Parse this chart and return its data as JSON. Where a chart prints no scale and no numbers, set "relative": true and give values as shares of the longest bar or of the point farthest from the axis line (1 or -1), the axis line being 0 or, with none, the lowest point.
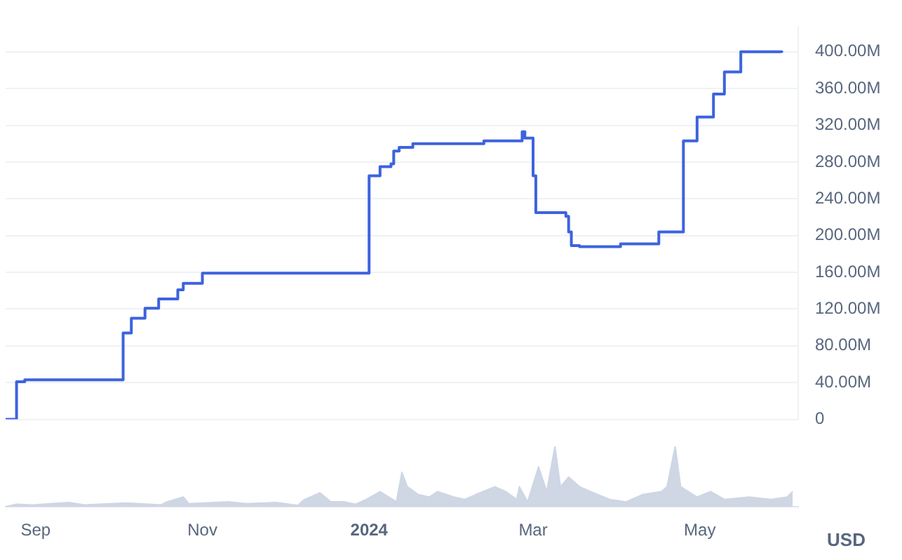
{
  "chart_data": [
    {
      "type": "step",
      "xlim": [
        "2023-08-21",
        "2024-06-06"
      ],
      "ylim": [
        0,
        427000000
      ],
      "yticks": [
        0,
        {
          "value": 40000000,
          "label": "40.00M"
        },
        {
          "value": 80000000,
          "label": "80.00M"
        },
        {
          "value": 120000000,
          "label": "120.00M"
        },
        {
          "value": 160000000,
          "label": "160.00M"
        },
        {
          "value": 200000000,
          "label": "200.00M"
        },
        {
          "value": 240000000,
          "label": "240.00M"
        },
        {
          "value": 280000000,
          "label": "280.00M"
        },
        {
          "value": 320000000,
          "label": "320.00M"
        },
        {
          "value": 360000000,
          "label": "360.00M"
        },
        {
          "value": 400000000,
          "label": "400.00M"
        }
      ],
      "grid": "y",
      "legend": false,
      "tick_labels": "y",
      "x": [
        "2023-08-21",
        "2023-08-25",
        "2023-08-28",
        "2023-10-03",
        "2023-10-06",
        "2023-10-11",
        "2023-10-16",
        "2023-10-23",
        "2023-10-25",
        "2023-11-01",
        "2024-01-01",
        "2024-01-05",
        "2024-01-09",
        "2024-01-10",
        "2024-01-12",
        "2024-01-17",
        "2024-02-12",
        "2024-02-26",
        "2024-02-27",
        "2024-03-01",
        "2024-03-02",
        "2024-03-13",
        "2024-03-14",
        "2024-03-15",
        "2024-03-18",
        "2024-04-02",
        "2024-04-16",
        "2024-04-25",
        "2024-04-30",
        "2024-05-06",
        "2024-05-10",
        "2024-05-16",
        "2024-05-31"
      ],
      "series": [
        {
          "color": "#3d63dd",
          "values": [
            0,
            41000000,
            43000000,
            94000000,
            110000000,
            121000000,
            131000000,
            141000000,
            148000000,
            159000000,
            265000000,
            275000000,
            278000000,
            292000000,
            296000000,
            300000000,
            303000000,
            313000000,
            306000000,
            265000000,
            225000000,
            221000000,
            204000000,
            189000000,
            188000000,
            191000000,
            204000000,
            303000000,
            329000000,
            354000000,
            378000000,
            400000000,
            399000000
          ]
        }
      ]
    },
    {
      "type": "area",
      "relative": true,
      "xlim": [
        "2023-08-21",
        "2024-06-06"
      ],
      "xticks": [
        {
          "value": "2023-09-01",
          "label": "Sep"
        },
        {
          "value": "2023-11-01",
          "label": "Nov"
        },
        {
          "value": "2024-01-01",
          "label": "2024"
        },
        {
          "value": "2024-03-01",
          "label": "Mar"
        },
        {
          "value": "2024-05-01",
          "label": "May"
        }
      ],
      "tick_labels": "x",
      "legend": false,
      "annotations": [
        "USD"
      ],
      "x": [
        "2023-08-21",
        "2023-08-25",
        "2023-08-31",
        "2023-09-13",
        "2023-09-19",
        "2023-10-04",
        "2023-10-17",
        "2023-10-19",
        "2023-10-25",
        "2023-10-27",
        "2023-11-11",
        "2023-11-17",
        "2023-11-28",
        "2023-12-06",
        "2023-12-08",
        "2023-12-14",
        "2023-12-18",
        "2023-12-23",
        "2023-12-27",
        "2023-12-31",
        "2024-01-05",
        "2024-01-11",
        "2024-01-13",
        "2024-01-15",
        "2024-01-19",
        "2024-01-23",
        "2024-01-26",
        "2024-02-01",
        "2024-02-05",
        "2024-02-09",
        "2024-02-16",
        "2024-02-20",
        "2024-02-24",
        "2024-02-25",
        "2024-02-28",
        "2024-03-03",
        "2024-03-06",
        "2024-03-09",
        "2024-03-11",
        "2024-03-14",
        "2024-03-18",
        "2024-03-22",
        "2024-03-29",
        "2024-04-04",
        "2024-04-10",
        "2024-04-17",
        "2024-04-19",
        "2024-04-22",
        "2024-04-24",
        "2024-04-30",
        "2024-05-05",
        "2024-05-10",
        "2024-05-19",
        "2024-05-27",
        "2024-06-02",
        "2024-06-04"
      ],
      "series": [
        {
          "color": "#cfd6e4",
          "values": [
            0,
            0.04,
            0.03,
            0.07,
            0.03,
            0.06,
            0.03,
            0.08,
            0.16,
            0.05,
            0.08,
            0.05,
            0.07,
            0.02,
            0.11,
            0.23,
            0.08,
            0.08,
            0.04,
            0.12,
            0.25,
            0.08,
            0.57,
            0.33,
            0.2,
            0.16,
            0.25,
            0.16,
            0.12,
            0.2,
            0.33,
            0.25,
            0.12,
            0.33,
            0.08,
            0.66,
            0.25,
            1,
            0.33,
            0.49,
            0.33,
            0.25,
            0.12,
            0.08,
            0.2,
            0.25,
            0.33,
            1,
            0.33,
            0.16,
            0.25,
            0.12,
            0.16,
            0.12,
            0.16,
            0.25
          ]
        }
      ]
    }
  ]
}
